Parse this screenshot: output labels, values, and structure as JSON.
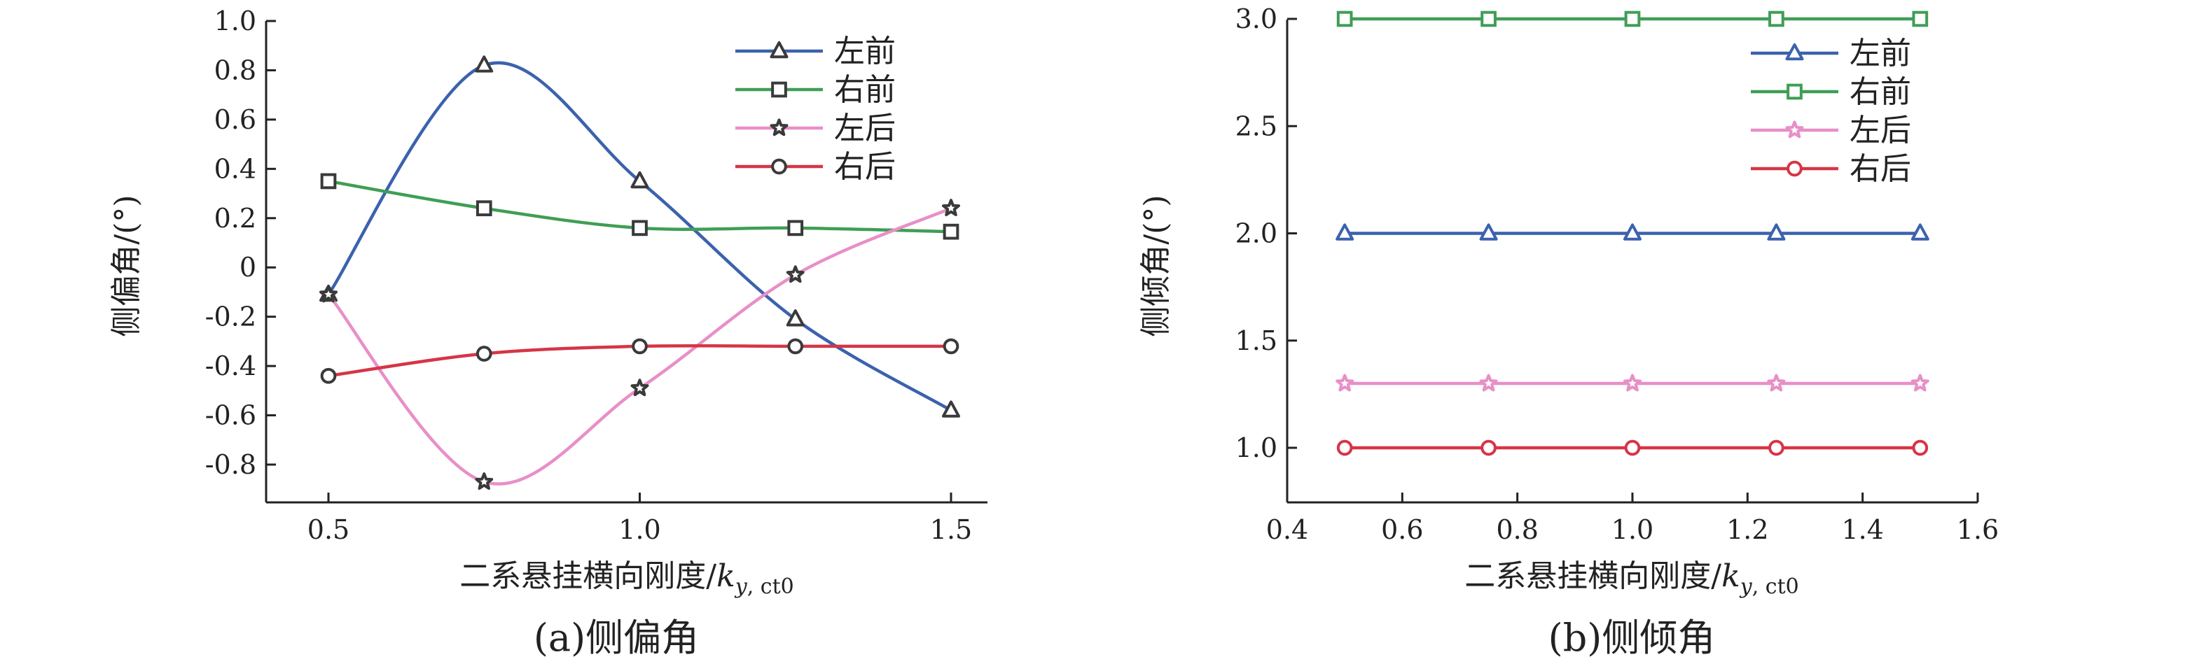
{
  "chart_data": [
    {
      "panel": "a",
      "type": "line",
      "caption": "(a)侧偏角",
      "xlabel": "二系悬挂横向刚度/",
      "xlabel_var": "k",
      "xlabel_sub_var": "y",
      "xlabel_sub_rest": ", ct0",
      "ylabel": "侧偏角/(°)",
      "xlim": [
        0.4,
        1.6
      ],
      "ylim": [
        -1.0,
        1.0
      ],
      "xticks": [
        "0.5",
        "1.0",
        "1.5"
      ],
      "yticks": [
        "1.0",
        "0.8",
        "0.6",
        "0.4",
        "0.2",
        "0",
        "-0.2",
        "-0.4",
        "-0.6",
        "-0.8"
      ],
      "grid": false,
      "legend_position": "top-right",
      "x": [
        0.5,
        0.75,
        1.0,
        1.25,
        1.5
      ],
      "series": [
        {
          "name": "左前",
          "color": "#3b62ad",
          "marker": "triangle",
          "values": [
            -0.11,
            0.82,
            0.35,
            -0.21,
            -0.58
          ]
        },
        {
          "name": "右前",
          "color": "#3f9e55",
          "marker": "square",
          "values": [
            0.35,
            0.24,
            0.16,
            0.16,
            0.145
          ]
        },
        {
          "name": "左后",
          "color": "#e88fc8",
          "marker": "star",
          "values": [
            -0.11,
            -0.87,
            -0.49,
            -0.03,
            0.24
          ]
        },
        {
          "name": "右后",
          "color": "#d63545",
          "marker": "circle",
          "values": [
            -0.44,
            -0.35,
            -0.32,
            -0.32,
            -0.32
          ]
        }
      ]
    },
    {
      "panel": "b",
      "type": "line",
      "caption": "(b)侧倾角",
      "xlabel": "二系悬挂横向刚度/",
      "xlabel_var": "k",
      "xlabel_sub_var": "y",
      "xlabel_sub_rest": ", ct0",
      "ylabel": "侧倾角/(°)",
      "xlim": [
        0.4,
        1.6
      ],
      "ylim": [
        0.6,
        3.0
      ],
      "xticks": [
        "0.4",
        "0.6",
        "0.8",
        "1.0",
        "1.2",
        "1.4",
        "1.6"
      ],
      "yticks": [
        "3.0",
        "2.5",
        "2.0",
        "1.5",
        "1.0"
      ],
      "grid": false,
      "legend_position": "top-right",
      "x": [
        0.5,
        0.75,
        1.0,
        1.25,
        1.5
      ],
      "series": [
        {
          "name": "左前",
          "color": "#3b62ad",
          "marker": "triangle",
          "values": [
            2.0,
            2.0,
            2.0,
            2.0,
            2.0
          ]
        },
        {
          "name": "右前",
          "color": "#3f9e55",
          "marker": "square",
          "values": [
            3.0,
            3.0,
            3.0,
            3.0,
            3.0
          ]
        },
        {
          "name": "左后",
          "color": "#e88fc8",
          "marker": "star",
          "values": [
            1.3,
            1.3,
            1.3,
            1.3,
            1.3
          ]
        },
        {
          "name": "右后",
          "color": "#d63545",
          "marker": "circle",
          "values": [
            1.0,
            1.0,
            1.0,
            1.0,
            1.0
          ]
        }
      ]
    }
  ]
}
